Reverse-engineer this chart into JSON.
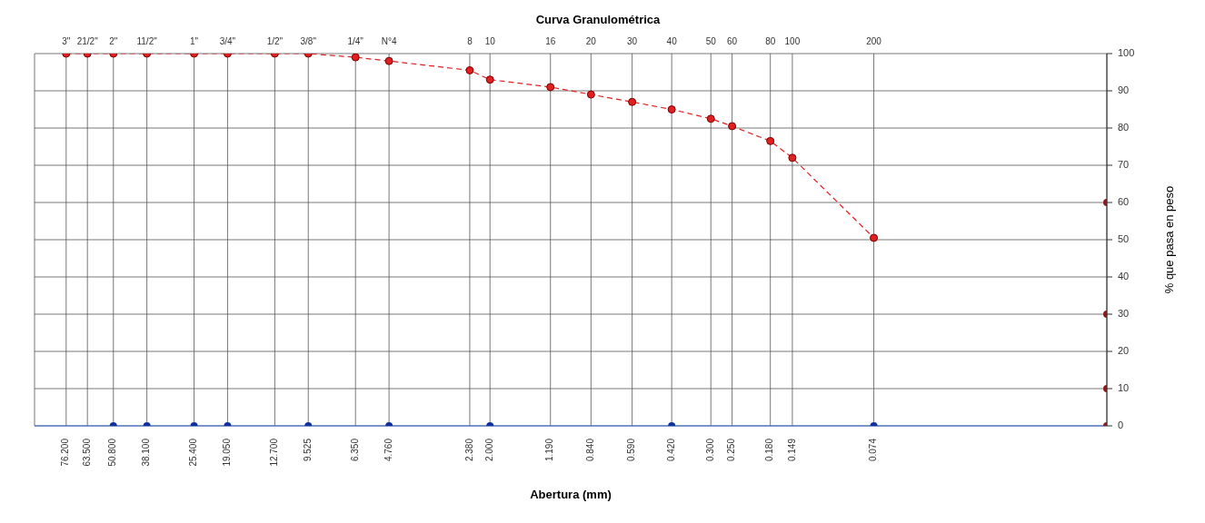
{
  "chart_data": {
    "type": "line",
    "title": "Curva Granulométrica",
    "xlabel": "Abertura (mm)",
    "ylabel": "% que pasa en peso",
    "log": "x",
    "xlim": [
      100,
      0.01
    ],
    "ylim": [
      0,
      100
    ],
    "yticks": [
      0,
      10,
      20,
      30,
      40,
      50,
      60,
      70,
      80,
      90,
      100
    ],
    "grid": true,
    "marker": "circle",
    "line_style": "dashed",
    "xticks": [
      {
        "value": 76.2,
        "label": "76.200"
      },
      {
        "value": 63.5,
        "label": "63.500"
      },
      {
        "value": 50.8,
        "label": "50.800"
      },
      {
        "value": 38.1,
        "label": "38.100"
      },
      {
        "value": 25.4,
        "label": "25.400"
      },
      {
        "value": 19.05,
        "label": "19.050"
      },
      {
        "value": 12.7,
        "label": "12.700"
      },
      {
        "value": 9.525,
        "label": "9.525"
      },
      {
        "value": 6.35,
        "label": "6.350"
      },
      {
        "value": 4.76,
        "label": "4.760"
      },
      {
        "value": 2.38,
        "label": "2.380"
      },
      {
        "value": 2,
        "label": "2.000"
      },
      {
        "value": 1.19,
        "label": "1.190"
      },
      {
        "value": 0.84,
        "label": "0.840"
      },
      {
        "value": 0.59,
        "label": "0.590"
      },
      {
        "value": 0.42,
        "label": "0.420"
      },
      {
        "value": 0.3,
        "label": "0.300"
      },
      {
        "value": 0.25,
        "label": "0.250"
      },
      {
        "value": 0.18,
        "label": "0.180"
      },
      {
        "value": 0.149,
        "label": "0.149"
      },
      {
        "value": 0.074,
        "label": "0.074"
      }
    ],
    "annotations": [
      "3\"",
      "21/2\"",
      "2\"",
      "11/2\"",
      "1\"",
      "3/4\"",
      "1/2\"",
      "3/8\"",
      "1/4\"",
      "N°4",
      "8",
      "10",
      "16",
      "20",
      "30",
      "40",
      "50",
      "60",
      "80",
      "100",
      "200"
    ],
    "x": [
      76.2,
      63.5,
      50.8,
      38.1,
      25.4,
      19.05,
      12.7,
      9.525,
      6.35,
      4.76,
      2.38,
      2,
      1.19,
      0.84,
      0.59,
      0.42,
      0.3,
      0.25,
      0.18,
      0.149,
      0.074
    ],
    "series": [
      {
        "color": "#e02020",
        "values": [
          100,
          100,
          100,
          100,
          100,
          100,
          100,
          100,
          99,
          98,
          95.5,
          93,
          91,
          89,
          87,
          85,
          82.5,
          80.5,
          76.5,
          72,
          50.5
        ]
      },
      {
        "type": "scatter",
        "color": "#1030a0",
        "x": [
          50.8,
          38.1,
          25.4,
          19.05,
          9.525,
          4.76,
          2,
          0.42,
          0.074
        ],
        "values": [
          0,
          0,
          0,
          0,
          0,
          0,
          0,
          0,
          0
        ]
      },
      {
        "type": "scatter",
        "color": "#8b1a1a",
        "x": [
          0.01,
          0.01,
          0.01,
          0.01
        ],
        "values": [
          0,
          10,
          30,
          60
        ]
      }
    ]
  }
}
